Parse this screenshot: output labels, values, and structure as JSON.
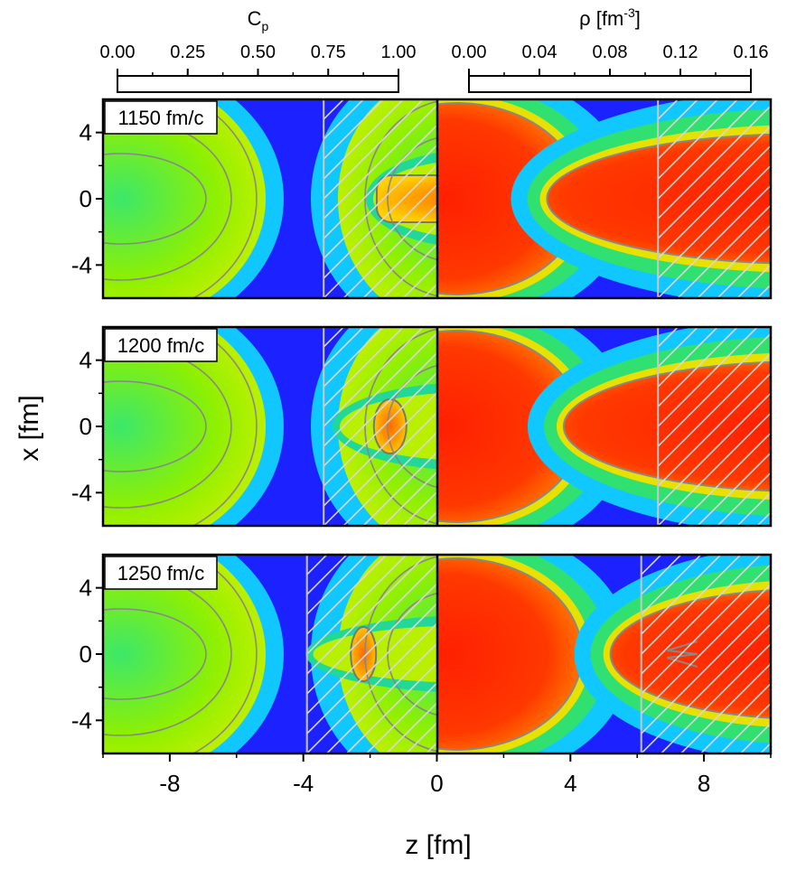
{
  "chart_data": {
    "type": "heatmap",
    "xlabel": "z [fm]",
    "ylabel": "x [fm]",
    "xlim": [
      -10,
      10
    ],
    "ylim": [
      -6,
      6
    ],
    "x_ticks": [
      -8,
      -4,
      0,
      4,
      8
    ],
    "y_ticks": [
      4,
      0,
      -4
    ],
    "colorbars": [
      {
        "label_main": "C",
        "label_sub": "p",
        "label_sup": "",
        "label_unit": "",
        "range": [
          0,
          1
        ],
        "ticks": [
          "0.00",
          "0.25",
          "0.50",
          "0.75",
          "1.00"
        ]
      },
      {
        "label_main": "ρ [fm",
        "label_sub": "",
        "label_sup": "-3",
        "label_unit": "]",
        "range": [
          0,
          0.16
        ],
        "ticks": [
          "0.00",
          "0.04",
          "0.08",
          "0.12",
          "0.16"
        ]
      }
    ],
    "colormap": [
      "#1f1fff",
      "#00c8ff",
      "#20e060",
      "#d4f000",
      "#ffa000",
      "#ff2a00"
    ],
    "rows": [
      {
        "label": "1150 fm/c",
        "cp": {
          "diag_hatch": [
            -3.4,
            0.7
          ],
          "horiz_hatch": [
            0.7,
            4.6
          ],
          "hot_zone": [
            -1.8,
            4.4
          ]
        },
        "rho": {
          "diag_hatch": [
            -3.4,
            0.7
          ],
          "horiz_hatch": [
            0.7,
            4.6
          ],
          "right_blob_start": 3.3
        }
      },
      {
        "label": "1200 fm/c",
        "cp": {
          "diag_hatch": [
            -3.4,
            0.7
          ],
          "horiz_hatch": [
            0.7,
            5.4
          ],
          "hot_zone": [
            -2.8,
            5.0
          ]
        },
        "rho": {
          "diag_hatch": [
            -3.4,
            0.7
          ],
          "horiz_hatch": [
            0.7,
            5.4
          ],
          "right_blob_start": 3.8
        }
      },
      {
        "label": "1250 fm/c",
        "cp": {
          "diag_hatch": [
            -3.9,
            0.7
          ],
          "horiz_hatch": [
            0.7,
            6.0
          ],
          "hot_zone": [
            -3.6,
            6.0
          ]
        },
        "rho": {
          "diag_hatch": [
            -3.9,
            0.7
          ],
          "horiz_hatch": [
            0.7,
            6.0
          ],
          "right_blob_start": 5.2
        }
      }
    ]
  }
}
